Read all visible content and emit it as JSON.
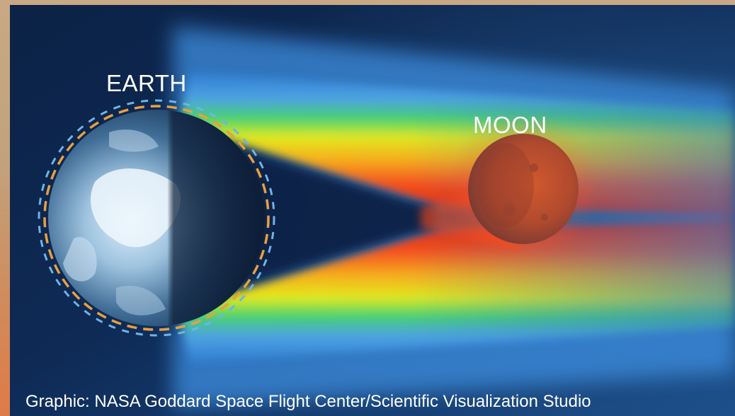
{
  "labels": {
    "earth": "EARTH",
    "moon": "MOON"
  },
  "credit": "Graphic: NASA Goddard Space Flight Center/Scientific Visualization Studio",
  "colors": {
    "background_deep": "#0a1c3a",
    "background_mid": "#123766",
    "atmosphere_ring_blue": "#6fb4e6",
    "atmosphere_ring_orange": "#e8a040",
    "moon_tint": "#c25a3a",
    "beam_red": "#ff2a10",
    "beam_yellow": "#f2e614",
    "beam_green": "#3fd23c",
    "beam_blue": "#3a8ee6"
  },
  "icons": {
    "earth": "earth-globe-icon",
    "moon": "moon-sphere-icon"
  }
}
